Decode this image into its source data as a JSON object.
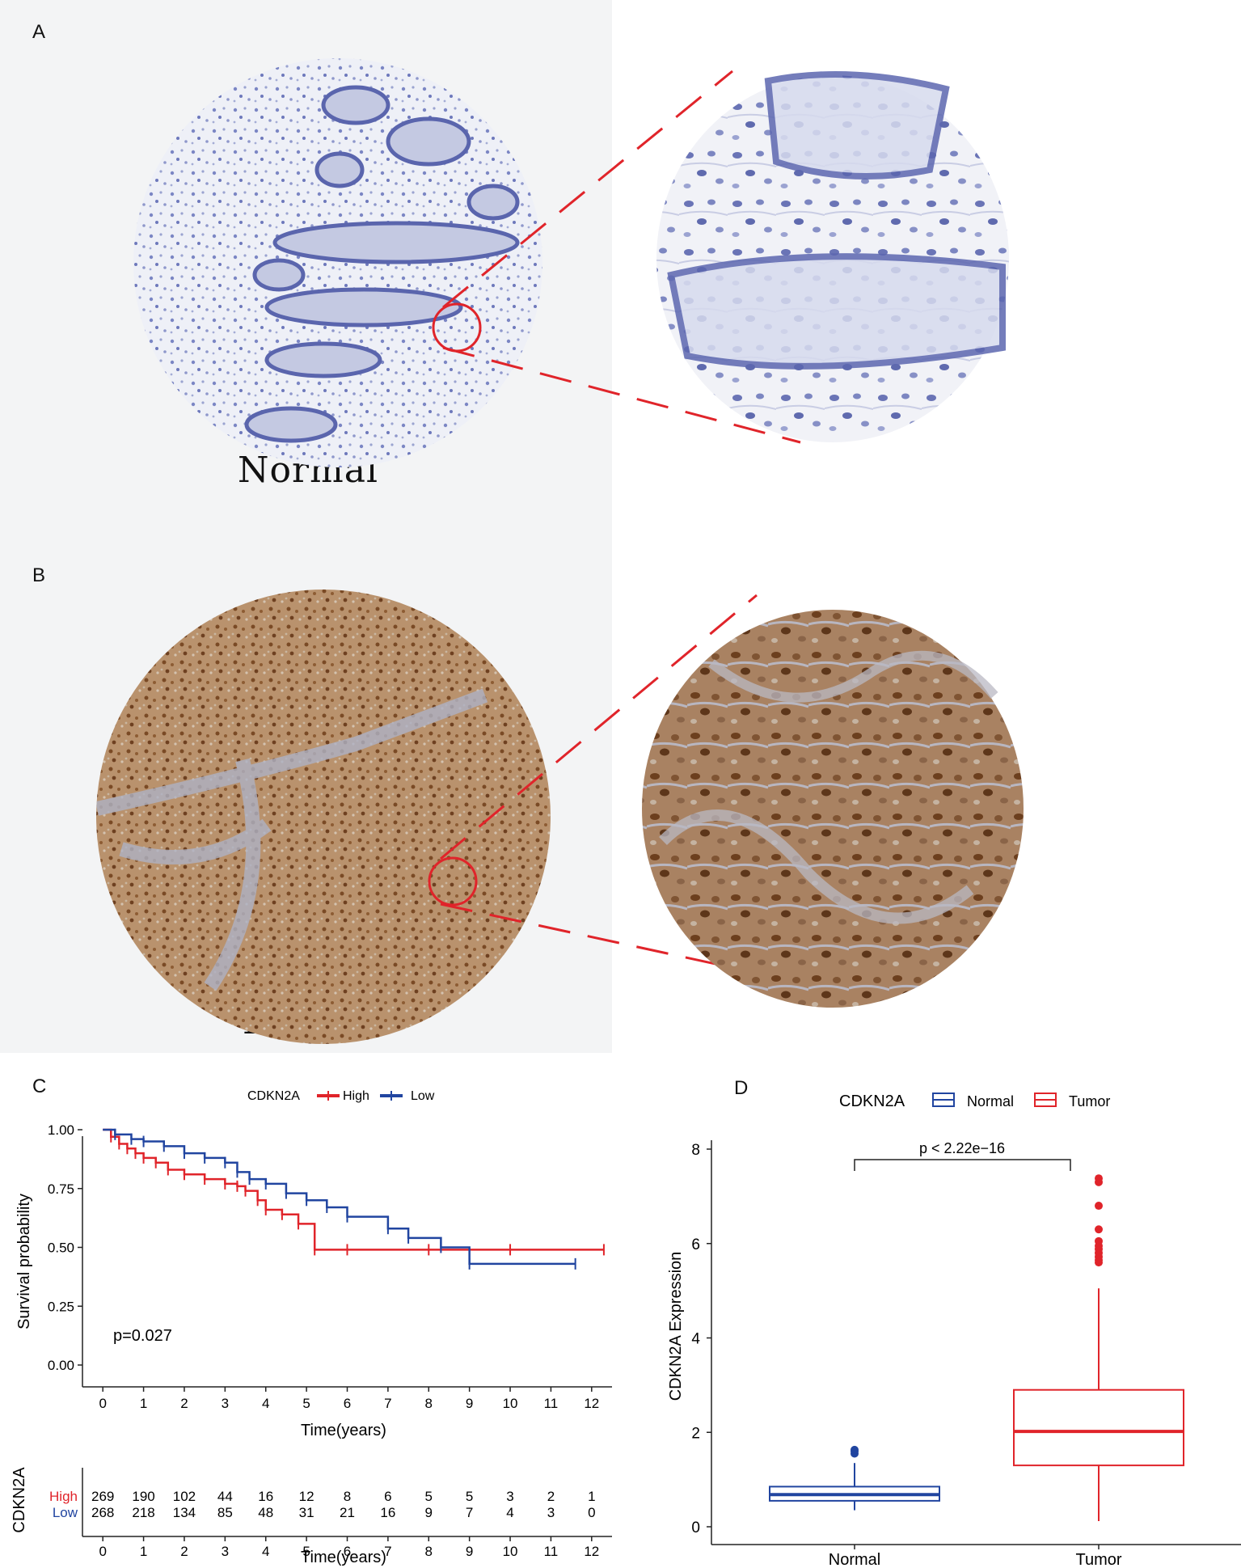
{
  "panels": {
    "a": {
      "letter": "A",
      "label": "Normal"
    },
    "b": {
      "letter": "B",
      "label": "Tumor"
    },
    "c": {
      "letter": "C"
    },
    "d": {
      "letter": "D"
    }
  },
  "colors": {
    "high": "#e0242a",
    "low": "#2145a0",
    "normal_stain": "#6a76b8",
    "tumor_stain": "#8a5a35",
    "zoom_line": "#e0242a"
  },
  "chart_data": [
    {
      "type": "line",
      "subtype": "kaplan-meier",
      "legend_title": "CDKN2A",
      "legend_position": "top",
      "xlabel": "Time(years)",
      "ylabel": "Survival probability",
      "xlim": [
        -0.5,
        12.5
      ],
      "ylim": [
        0,
        1
      ],
      "x_ticks": [
        0,
        1,
        2,
        3,
        4,
        5,
        6,
        7,
        8,
        9,
        10,
        11,
        12
      ],
      "y_ticks": [
        "0.00",
        "0.25",
        "0.50",
        "0.75",
        "1.00"
      ],
      "annotation": "p=0.027",
      "series": [
        {
          "name": "High",
          "x": [
            0,
            0.2,
            0.4,
            0.6,
            0.8,
            1.0,
            1.3,
            1.6,
            2.0,
            2.5,
            3.0,
            3.3,
            3.5,
            3.8,
            4.0,
            4.4,
            4.8,
            5.2,
            6.0,
            8.0,
            10.0,
            12.3
          ],
          "y": [
            1.0,
            0.97,
            0.94,
            0.92,
            0.9,
            0.88,
            0.86,
            0.83,
            0.81,
            0.79,
            0.77,
            0.76,
            0.74,
            0.7,
            0.66,
            0.64,
            0.6,
            0.49,
            0.49,
            0.49,
            0.49,
            0.49
          ]
        },
        {
          "name": "Low",
          "x": [
            0,
            0.3,
            0.7,
            1.0,
            1.5,
            2.0,
            2.5,
            3.0,
            3.3,
            3.6,
            4.0,
            4.5,
            5.0,
            5.5,
            6.0,
            7.0,
            7.5,
            8.3,
            9.0,
            11.6
          ],
          "y": [
            1.0,
            0.98,
            0.96,
            0.95,
            0.93,
            0.9,
            0.88,
            0.86,
            0.82,
            0.79,
            0.77,
            0.73,
            0.7,
            0.67,
            0.63,
            0.58,
            0.54,
            0.5,
            0.43,
            0.43
          ]
        }
      ]
    },
    {
      "type": "table",
      "title": "CDKN2A",
      "xlabel": "Time(years)",
      "x_ticks": [
        0,
        1,
        2,
        3,
        4,
        5,
        6,
        7,
        8,
        9,
        10,
        11,
        12
      ],
      "rows": [
        {
          "name": "High",
          "values": [
            269,
            190,
            102,
            44,
            16,
            12,
            8,
            6,
            5,
            5,
            3,
            2,
            1
          ]
        },
        {
          "name": "Low",
          "values": [
            268,
            218,
            134,
            85,
            48,
            31,
            21,
            16,
            9,
            7,
            4,
            3,
            0
          ]
        }
      ]
    },
    {
      "type": "box",
      "legend_title": "CDKN2A",
      "legend_position": "top",
      "categories": [
        "Normal",
        "Tumor"
      ],
      "ylabel": "CDKN2A Expression",
      "ylim": [
        0,
        8
      ],
      "y_ticks": [
        0,
        2,
        4,
        6,
        8
      ],
      "annotation": "p < 2.22e−16",
      "boxes": [
        {
          "name": "Normal",
          "min": 0.35,
          "q1": 0.55,
          "median": 0.68,
          "q3": 0.85,
          "max": 1.35,
          "outliers": [
            1.55,
            1.6,
            1.63
          ]
        },
        {
          "name": "Tumor",
          "min": 0.12,
          "q1": 1.3,
          "median": 2.02,
          "q3": 2.9,
          "max": 5.05,
          "outliers": [
            5.6,
            5.65,
            5.72,
            5.8,
            5.88,
            5.95,
            6.05,
            6.3,
            6.8,
            7.3,
            7.38
          ]
        }
      ]
    }
  ]
}
